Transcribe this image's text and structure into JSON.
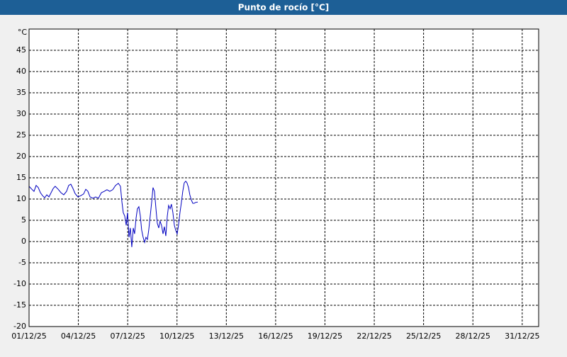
{
  "chart_data": {
    "type": "line",
    "title": "Punto de rocío [°C]",
    "y_unit": "°C",
    "xlim": [
      0,
      31
    ],
    "xticks": [
      {
        "value": 0,
        "label": "01/12/25"
      },
      {
        "value": 3,
        "label": "04/12/25"
      },
      {
        "value": 6,
        "label": "07/12/25"
      },
      {
        "value": 9,
        "label": "10/12/25"
      },
      {
        "value": 12,
        "label": "13/12/25"
      },
      {
        "value": 15,
        "label": "16/12/25"
      },
      {
        "value": 18,
        "label": "19/12/25"
      },
      {
        "value": 21,
        "label": "22/12/25"
      },
      {
        "value": 24,
        "label": "25/12/25"
      },
      {
        "value": 27,
        "label": "28/12/25"
      },
      {
        "value": 30,
        "label": "31/12/25"
      }
    ],
    "ylim": [
      -20,
      50
    ],
    "yticks": [
      -20,
      -15,
      -10,
      -5,
      0,
      5,
      10,
      15,
      20,
      25,
      30,
      35,
      40,
      45
    ],
    "grid": true,
    "series": [
      {
        "color": "#0000c0",
        "x": [
          0,
          0.17,
          0.3,
          0.43,
          0.56,
          0.69,
          0.82,
          0.95,
          1.08,
          1.21,
          1.34,
          1.47,
          1.59,
          1.77,
          1.94,
          2.11,
          2.28,
          2.41,
          2.54,
          2.67,
          2.8,
          2.97,
          3.15,
          3.32,
          3.45,
          3.58,
          3.71,
          3.88,
          4.05,
          4.22,
          4.4,
          4.57,
          4.74,
          4.91,
          5.09,
          5.26,
          5.43,
          5.56,
          5.65,
          5.73,
          5.82,
          5.91,
          5.99,
          6.08,
          6.16,
          6.25,
          6.34,
          6.42,
          6.51,
          6.59,
          6.68,
          6.77,
          6.85,
          6.94,
          7.03,
          7.11,
          7.2,
          7.28,
          7.37,
          7.46,
          7.54,
          7.63,
          7.72,
          7.8,
          7.89,
          7.97,
          8.06,
          8.15,
          8.23,
          8.32,
          8.41,
          8.49,
          8.58,
          8.66,
          8.75,
          8.84,
          8.92,
          9.01,
          9.09,
          9.18,
          9.27,
          9.35,
          9.44,
          9.53,
          9.61,
          9.7,
          9.78,
          9.87,
          9.96,
          10.04,
          10.13,
          10.26
        ],
        "values": [
          13,
          12.3,
          11.8,
          13.2,
          12.7,
          11.5,
          10.8,
          10.3,
          11,
          10.5,
          11.5,
          12.5,
          13,
          12.3,
          11.5,
          11,
          11.8,
          13.2,
          13.5,
          12.5,
          11.3,
          10.5,
          10.8,
          11.2,
          12.3,
          11.8,
          10.5,
          10.2,
          10.5,
          10.2,
          11.5,
          11.8,
          12.2,
          11.8,
          12.2,
          13.2,
          13.7,
          13,
          9.3,
          6.8,
          6,
          3.8,
          6.8,
          1,
          3.2,
          -1.3,
          3.2,
          1.8,
          5.5,
          7.7,
          8.2,
          6,
          2.7,
          1,
          -0.2,
          1,
          0.5,
          2.7,
          6,
          9.3,
          12.7,
          11.8,
          7.7,
          4.3,
          3.2,
          4.8,
          3.8,
          1.8,
          3.5,
          1.3,
          6,
          8.5,
          7.7,
          8.8,
          6.8,
          3.8,
          2.7,
          1.8,
          3.8,
          6.8,
          9.3,
          11.8,
          13.8,
          14.2,
          13.8,
          12.7,
          11,
          9.8,
          9,
          9,
          9.2,
          9.3
        ]
      }
    ]
  }
}
